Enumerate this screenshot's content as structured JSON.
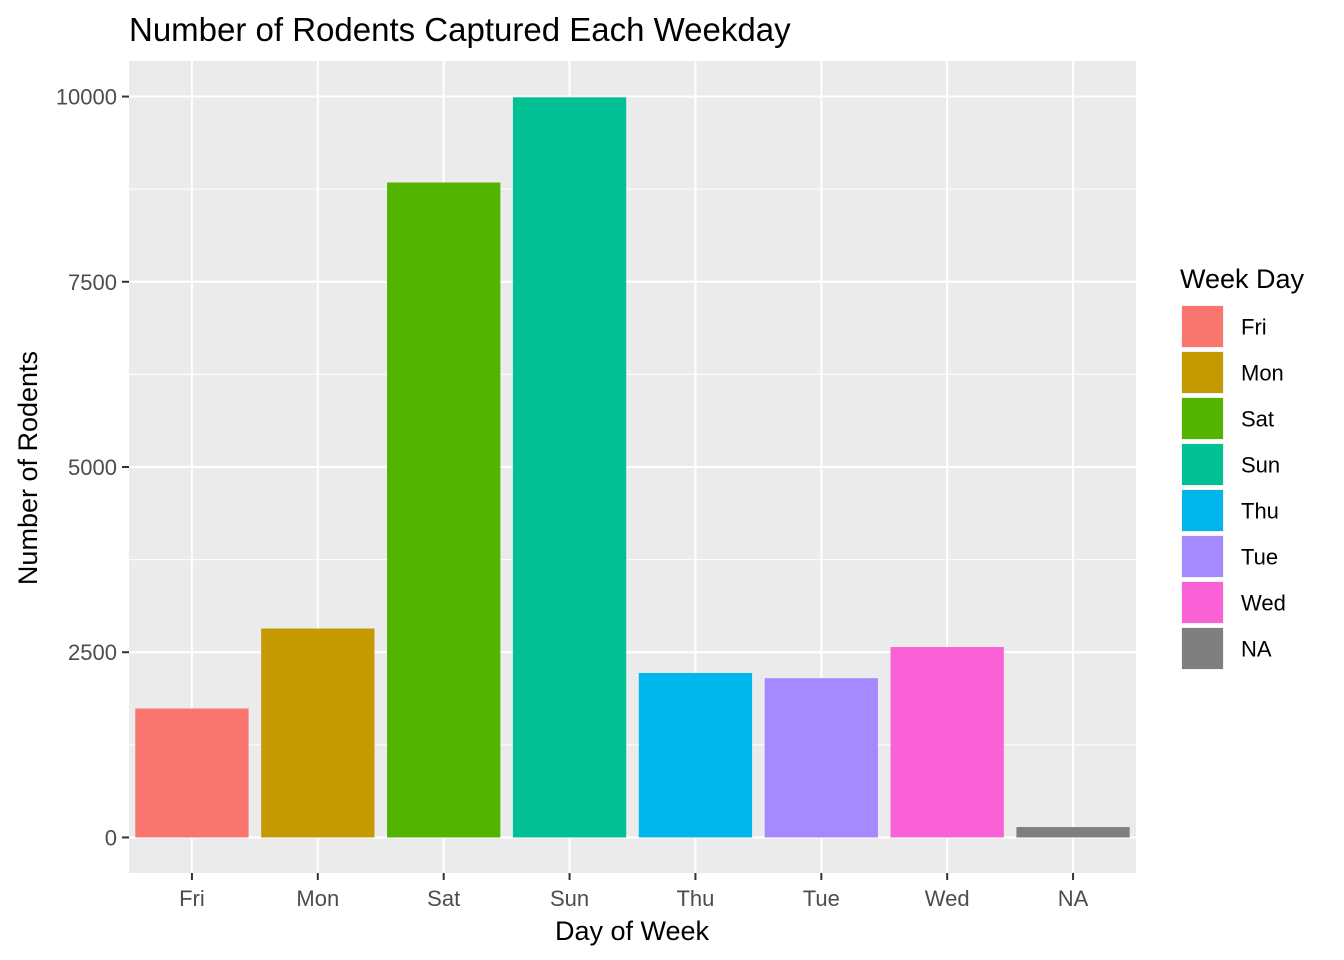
{
  "chart_data": {
    "type": "bar",
    "title": "Number of Rodents Captured Each Weekday",
    "xlabel": "Day of Week",
    "ylabel": "Number of Rodents",
    "categories": [
      "Fri",
      "Mon",
      "Sat",
      "Sun",
      "Thu",
      "Tue",
      "Wed",
      "NA"
    ],
    "values": [
      1740,
      2820,
      8840,
      9990,
      2220,
      2150,
      2570,
      140
    ],
    "colors": [
      "#F8766D",
      "#C49A00",
      "#53B400",
      "#00C094",
      "#00B6EB",
      "#A58AFF",
      "#FB61D7",
      "#7F7F7F"
    ],
    "ylim": [
      -480,
      10480
    ],
    "yticks": [
      0,
      2500,
      5000,
      7500,
      10000
    ],
    "ytick_labels": [
      "0",
      "2500",
      "5000",
      "7500",
      "10000"
    ],
    "grid": true,
    "panel_background": "#EBEBEB",
    "legend": {
      "title": "Week Day",
      "placement": "right",
      "entries": [
        "Fri",
        "Mon",
        "Sat",
        "Sun",
        "Thu",
        "Tue",
        "Wed",
        "NA"
      ]
    }
  }
}
